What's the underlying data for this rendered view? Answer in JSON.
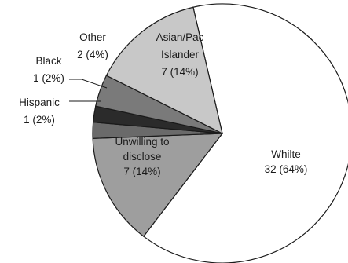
{
  "chart_data": {
    "type": "pie",
    "title": "",
    "slices": [
      {
        "category": "Whilte",
        "count": 32,
        "percent": "64%",
        "value": 64,
        "color": "#ffffff",
        "label": [
          "Whilte",
          "32 (64%)"
        ]
      },
      {
        "category": "Unwilling to disclose",
        "count": 7,
        "percent": "14%",
        "value": 14,
        "color": "#9e9e9e",
        "label": [
          "Unwilling to",
          "disclose",
          "7 (14%)"
        ]
      },
      {
        "category": "Hispanic",
        "count": 1,
        "percent": "2%",
        "value": 2,
        "color": "#6a6a6a",
        "label": [
          "Hispanic",
          "1 (2%)"
        ]
      },
      {
        "category": "Black",
        "count": 1,
        "percent": "2%",
        "value": 2,
        "color": "#2b2b2b",
        "label": [
          "Black",
          "1 (2%)"
        ]
      },
      {
        "category": "Other",
        "count": 2,
        "percent": "4%",
        "value": 4,
        "color": "#7a7a7a",
        "label": [
          "Other",
          "2 (4%)"
        ]
      },
      {
        "category": "Asian/Pac Islander",
        "count": 7,
        "percent": "14%",
        "value": 14,
        "color": "#c8c8c8",
        "label": [
          "Asian/Pac",
          "Islander",
          "7 (14%)"
        ]
      }
    ]
  }
}
